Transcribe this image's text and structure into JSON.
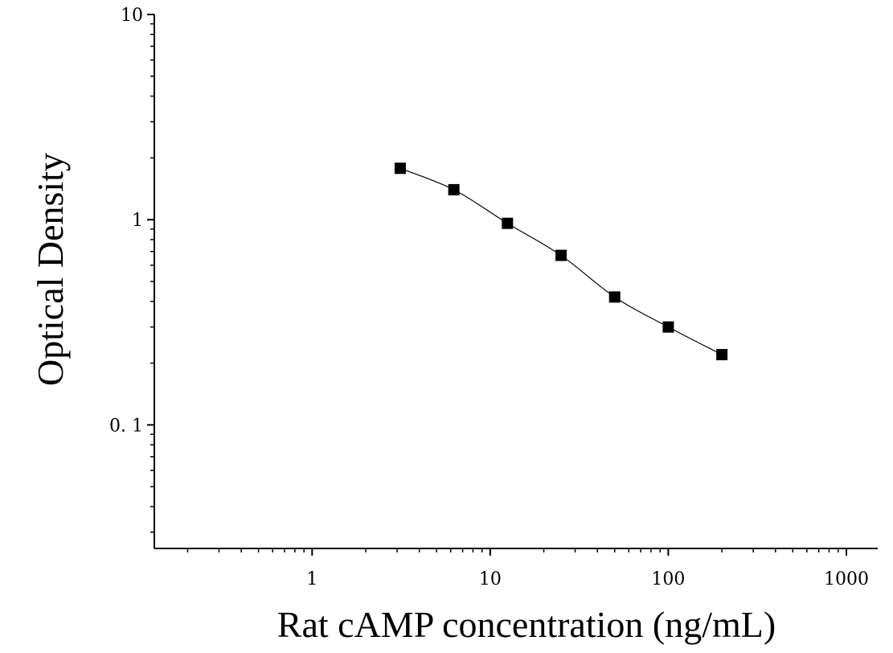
{
  "chart_data": {
    "type": "scatter",
    "title": "",
    "xlabel": "Rat cAMP concentration (ng/mL)",
    "ylabel": "Optical Density",
    "x_scale": "log",
    "y_scale": "log",
    "xlim": [
      0.13,
      1500
    ],
    "ylim": [
      0.025,
      10
    ],
    "x_ticks": [
      {
        "value": 1,
        "label": "1"
      },
      {
        "value": 10,
        "label": "10"
      },
      {
        "value": 100,
        "label": "100"
      },
      {
        "value": 1000,
        "label": "1000"
      }
    ],
    "y_ticks": [
      {
        "value": 0.1,
        "label": "0. 1"
      },
      {
        "value": 1,
        "label": "1"
      },
      {
        "value": 10,
        "label": "10"
      }
    ],
    "grid": false,
    "legend": "none",
    "series": [
      {
        "marker": "square",
        "color": "#000000",
        "fit_line": true,
        "points": [
          {
            "x": 3.125,
            "y": 1.78
          },
          {
            "x": 6.25,
            "y": 1.4
          },
          {
            "x": 12.5,
            "y": 0.96
          },
          {
            "x": 25,
            "y": 0.67
          },
          {
            "x": 50,
            "y": 0.42
          },
          {
            "x": 100,
            "y": 0.3
          },
          {
            "x": 200,
            "y": 0.22
          }
        ]
      }
    ]
  }
}
